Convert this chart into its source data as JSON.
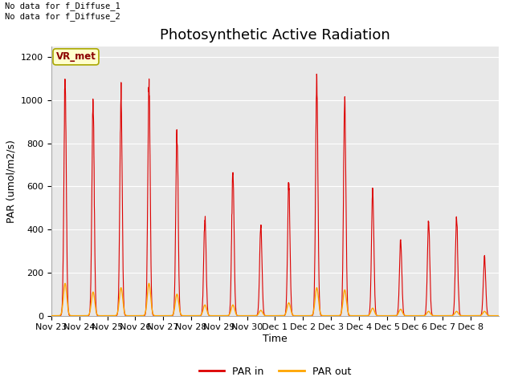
{
  "title": "Photosynthetic Active Radiation",
  "ylabel": "PAR (umol/m2/s)",
  "xlabel": "Time",
  "annotation_text": "No data for f_Diffuse_1\nNo data for f_Diffuse_2",
  "legend_box_label": "VR_met",
  "par_in_color": "#dd0000",
  "par_out_color": "#ffa500",
  "background_color": "#e8e8e8",
  "ylim": [
    0,
    1250
  ],
  "yticks": [
    0,
    200,
    400,
    600,
    800,
    1000,
    1200
  ],
  "xtick_labels": [
    "Nov 23",
    "Nov 24",
    "Nov 25",
    "Nov 26",
    "Nov 27",
    "Nov 28",
    "Nov 29",
    "Nov 30",
    "Dec 1",
    "Dec 2",
    "Dec 3",
    "Dec 4",
    "Dec 5",
    "Dec 6",
    "Dec 7",
    "Dec 8"
  ],
  "days_count": 16,
  "par_in_peaks": [
    1100,
    980,
    1010,
    1080,
    840,
    450,
    670,
    420,
    600,
    1060,
    1000,
    590,
    350,
    440,
    460,
    270
  ],
  "par_out_peaks": [
    150,
    110,
    130,
    150,
    100,
    50,
    50,
    25,
    60,
    130,
    120,
    35,
    30,
    20,
    20,
    20
  ],
  "title_fontsize": 13,
  "label_fontsize": 9,
  "tick_fontsize": 8
}
